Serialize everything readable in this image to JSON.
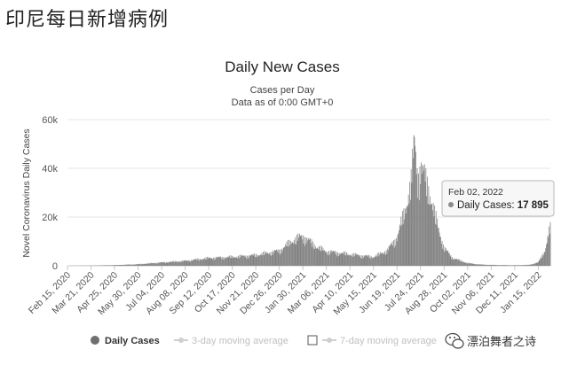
{
  "page": {
    "heading": "印尼每日新增病例"
  },
  "chart_data": {
    "type": "bar",
    "title": "Daily New Cases",
    "subtitle": "Cases per Day",
    "subtitle2": "Data as of 0:00 GMT+0",
    "ylabel": "Novel Coronavirus Daily Cases",
    "ylim": [
      0,
      60000
    ],
    "yticks": [
      0,
      20000,
      40000,
      60000
    ],
    "ytick_labels": [
      "0",
      "20k",
      "40k",
      "60k"
    ],
    "grid": true,
    "x_start": "Feb 15, 2020",
    "x_end": "Feb 02, 2022",
    "xtick_labels": [
      "Feb 15, 2020",
      "Mar 21, 2020",
      "Apr 25, 2020",
      "May 30, 2020",
      "Jul 04, 2020",
      "Aug 08, 2020",
      "Sep 12, 2020",
      "Oct 17, 2020",
      "Nov 21, 2020",
      "Dec 26, 2020",
      "Jan 30, 2021",
      "Mar 06, 2021",
      "Apr 10, 2021",
      "May 15, 2021",
      "Jun 19, 2021",
      "Jul 24, 2021",
      "Aug 28, 2021",
      "Oct 02, 2021",
      "Nov 06, 2021",
      "Dec 11, 2021",
      "Jan 15, 2022"
    ],
    "series": [
      {
        "name": "Daily Cases",
        "color": "#7f7f7f",
        "profile": [
          [
            "Feb 15, 2020",
            0
          ],
          [
            "Mar 21, 2020",
            100
          ],
          [
            "Apr 25, 2020",
            300
          ],
          [
            "May 30, 2020",
            700
          ],
          [
            "Jul 04, 2020",
            1500
          ],
          [
            "Aug 08, 2020",
            2200
          ],
          [
            "Sep 12, 2020",
            3500
          ],
          [
            "Oct 17, 2020",
            4000
          ],
          [
            "Nov 21, 2020",
            4800
          ],
          [
            "Dec 26, 2020",
            6800
          ],
          [
            "Jan 15, 2021",
            11500
          ],
          [
            "Jan 30, 2021",
            13500
          ],
          [
            "Feb 20, 2021",
            8500
          ],
          [
            "Mar 06, 2021",
            6500
          ],
          [
            "Apr 10, 2021",
            5200
          ],
          [
            "May 15, 2021",
            4000
          ],
          [
            "Jun 05, 2021",
            7000
          ],
          [
            "Jun 19, 2021",
            13000
          ],
          [
            "Jul 01, 2021",
            25000
          ],
          [
            "Jul 10, 2021",
            38000
          ],
          [
            "Jul 15, 2021",
            56000
          ],
          [
            "Jul 20, 2021",
            40000
          ],
          [
            "Jul 24, 2021",
            45000
          ],
          [
            "Aug 05, 2021",
            35000
          ],
          [
            "Aug 15, 2021",
            22000
          ],
          [
            "Aug 28, 2021",
            8000
          ],
          [
            "Sep 10, 2021",
            3500
          ],
          [
            "Oct 02, 2021",
            1200
          ],
          [
            "Oct 20, 2021",
            600
          ],
          [
            "Nov 06, 2021",
            400
          ],
          [
            "Dec 11, 2021",
            250
          ],
          [
            "Jan 01, 2022",
            400
          ],
          [
            "Jan 15, 2022",
            1500
          ],
          [
            "Jan 25, 2022",
            7000
          ],
          [
            "Feb 02, 2022",
            17895
          ]
        ]
      }
    ],
    "tooltip": {
      "date": "Feb 02, 2022",
      "series": "Daily Cases",
      "value_text": "17 895"
    },
    "legend": {
      "placement": "bottom",
      "items": [
        {
          "label": "Daily Cases",
          "color": "#6f6f6f",
          "active": true
        },
        {
          "label": "3-day moving average",
          "color": "#c8c8c8",
          "active": false
        },
        {
          "label": "7-day moving average",
          "color": "#c8c8c8",
          "active": false
        }
      ]
    }
  },
  "watermark": {
    "text": "漂泊舞者之诗",
    "icon": "wechat-icon"
  }
}
